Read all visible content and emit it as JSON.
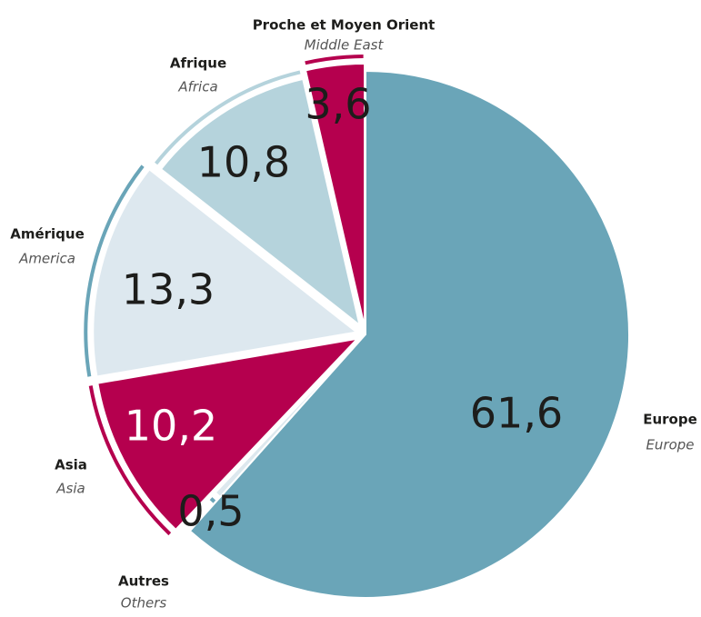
{
  "chart_data": {
    "type": "pie",
    "categories": [
      "Europe",
      "Autres",
      "Asia",
      "Amérique",
      "Afrique",
      "Proche et Moyen Orient"
    ],
    "categories_en": [
      "Europe",
      "Others",
      "Asia",
      "America",
      "Africa",
      "Middle East"
    ],
    "values": [
      61.6,
      0.5,
      10.2,
      13.3,
      10.8,
      3.6
    ],
    "value_labels": [
      "61,6",
      "0,5",
      "10,2",
      "13,3",
      "10,8",
      "3,6"
    ],
    "colors": [
      "#6aa5b8",
      "#dde8ee",
      "#b5004e",
      "#dde8ef",
      "#b5d3dc",
      "#b5004e"
    ]
  }
}
